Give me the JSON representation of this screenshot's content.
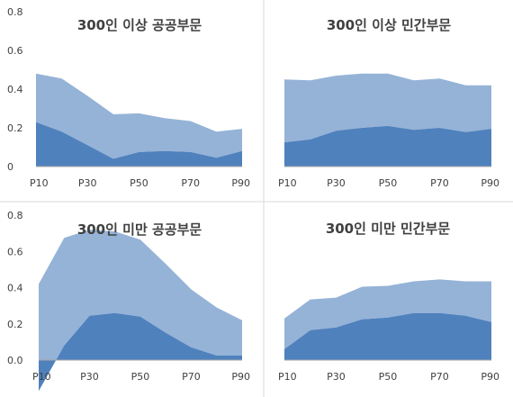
{
  "colors": {
    "upper_band": "#95b3d7",
    "lower_band": "#4f81bd",
    "axis": "#a6a6a6",
    "text": "#404040",
    "divider": "#d9d9d9"
  },
  "chart_data": [
    {
      "type": "area",
      "title": "300인 이상 공공부문",
      "x": [
        "P10",
        "P20",
        "P30",
        "P40",
        "P50",
        "P60",
        "P70",
        "P80",
        "P90"
      ],
      "x_tick_labels": [
        "P10",
        "P30",
        "P50",
        "P70",
        "P90"
      ],
      "ylim": [
        0,
        0.8
      ],
      "y_ticks": [
        "0",
        "0.2",
        "0.4",
        "0.6",
        "0.8"
      ],
      "grid": false,
      "series": [
        {
          "role": "lower",
          "values": [
            0.23,
            0.18,
            0.11,
            0.04,
            0.075,
            0.08,
            0.075,
            0.045,
            0.08
          ]
        },
        {
          "role": "upper",
          "values": [
            0.48,
            0.455,
            0.365,
            0.27,
            0.275,
            0.25,
            0.235,
            0.18,
            0.195
          ]
        }
      ]
    },
    {
      "type": "area",
      "title": "300인 이상 민간부문",
      "x": [
        "P10",
        "P20",
        "P30",
        "P40",
        "P50",
        "P60",
        "P70",
        "P80",
        "P90"
      ],
      "x_tick_labels": [
        "P10",
        "P30",
        "P50",
        "P70",
        "P90"
      ],
      "ylim": [
        0,
        0.8
      ],
      "grid": false,
      "series": [
        {
          "role": "lower",
          "values": [
            0.125,
            0.14,
            0.185,
            0.2,
            0.21,
            0.19,
            0.2,
            0.178,
            0.195
          ]
        },
        {
          "role": "upper",
          "values": [
            0.45,
            0.445,
            0.47,
            0.48,
            0.48,
            0.445,
            0.455,
            0.42,
            0.42
          ]
        }
      ]
    },
    {
      "type": "area",
      "title": "300인 미만 공공부문",
      "x": [
        "P10",
        "P20",
        "P30",
        "P40",
        "P50",
        "P60",
        "P70",
        "P80",
        "P90"
      ],
      "x_tick_labels": [
        "P10",
        "P30",
        "P50",
        "P70",
        "P90"
      ],
      "ylim": [
        0,
        0.8
      ],
      "y_ticks": [
        "0.0",
        "0.2",
        "0.4",
        "0.6",
        "0.8"
      ],
      "grid": false,
      "series": [
        {
          "role": "lower",
          "values": [
            -0.17,
            0.08,
            0.245,
            0.26,
            0.24,
            0.15,
            0.07,
            0.025,
            0.025
          ]
        },
        {
          "role": "upper",
          "values": [
            0.42,
            0.675,
            0.72,
            0.71,
            0.665,
            0.53,
            0.39,
            0.29,
            0.22
          ]
        }
      ]
    },
    {
      "type": "area",
      "title": "300인 미만 민간부문",
      "x": [
        "P10",
        "P20",
        "P30",
        "P40",
        "P50",
        "P60",
        "P70",
        "P80",
        "P90"
      ],
      "x_tick_labels": [
        "P10",
        "P30",
        "P50",
        "P70",
        "P90"
      ],
      "ylim": [
        0,
        0.8
      ],
      "grid": false,
      "series": [
        {
          "role": "lower",
          "values": [
            0.06,
            0.165,
            0.18,
            0.225,
            0.235,
            0.26,
            0.26,
            0.245,
            0.21
          ]
        },
        {
          "role": "upper",
          "values": [
            0.23,
            0.335,
            0.345,
            0.405,
            0.41,
            0.435,
            0.445,
            0.435,
            0.435
          ]
        }
      ]
    }
  ]
}
